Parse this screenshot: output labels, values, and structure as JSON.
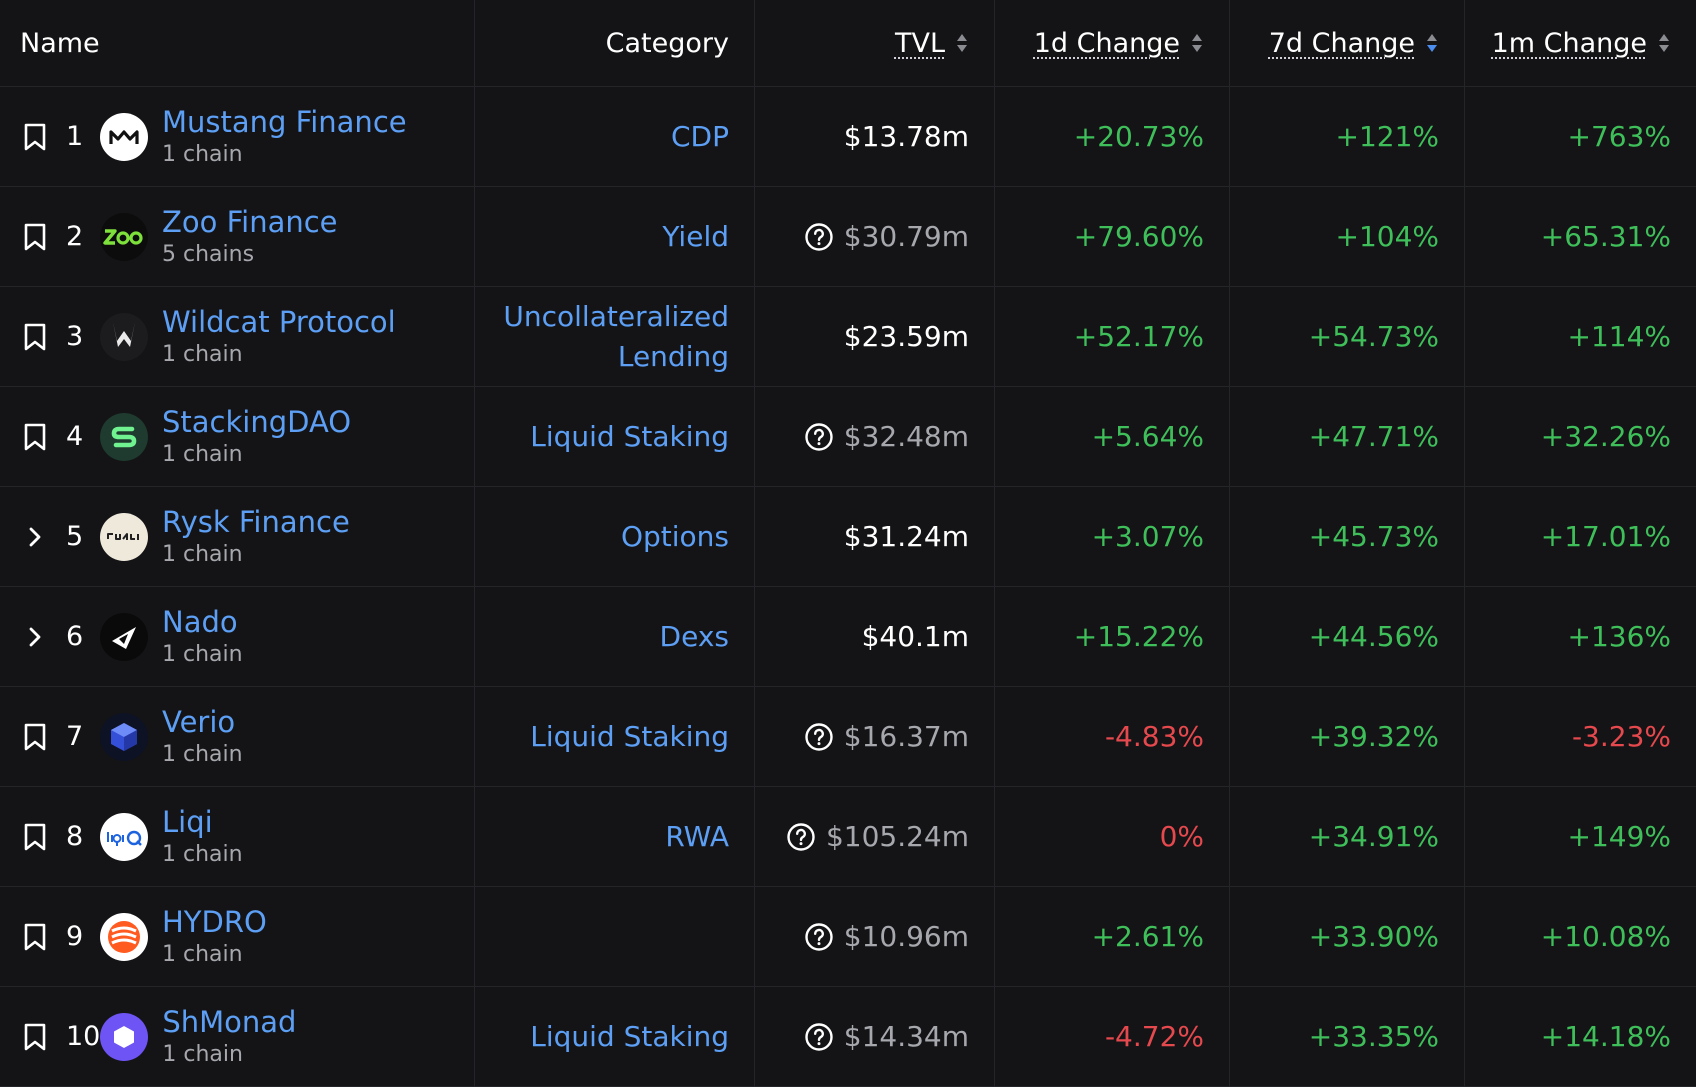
{
  "headers": {
    "name": "Name",
    "category": "Category",
    "tvl": "TVL",
    "change_1d": "1d Change",
    "change_7d": "7d Change",
    "change_1m": "1m Change",
    "active_sort": "7d Change",
    "sort_direction": "descending"
  },
  "colors": {
    "background": "#141416",
    "link": "#5c9ff4",
    "positive": "#3fbf5a",
    "negative": "#e5484d",
    "muted": "#a6a8ad",
    "sort_active": "#4c8df0"
  },
  "rows": [
    {
      "lead": "bookmark-icon",
      "rank": "1",
      "name": "Mustang Finance",
      "chains": "1 chain",
      "category": "CDP",
      "tvl": "$13.78m",
      "tvl_unverified": false,
      "d1": "+20.73%",
      "d7": "+121%",
      "m1": "+763%",
      "logo": "mustang-logo"
    },
    {
      "lead": "bookmark-icon",
      "rank": "2",
      "name": "Zoo Finance",
      "chains": "5 chains",
      "category": "Yield",
      "tvl": "$30.79m",
      "tvl_unverified": true,
      "d1": "+79.60%",
      "d7": "+104%",
      "m1": "+65.31%",
      "logo": "zoo-logo"
    },
    {
      "lead": "bookmark-icon",
      "rank": "3",
      "name": "Wildcat Protocol",
      "chains": "1 chain",
      "category": "Uncollateralized Lending",
      "tvl": "$23.59m",
      "tvl_unverified": false,
      "d1": "+52.17%",
      "d7": "+54.73%",
      "m1": "+114%",
      "logo": "wildcat-logo"
    },
    {
      "lead": "bookmark-icon",
      "rank": "4",
      "name": "StackingDAO",
      "chains": "1 chain",
      "category": "Liquid Staking",
      "tvl": "$32.48m",
      "tvl_unverified": true,
      "d1": "+5.64%",
      "d7": "+47.71%",
      "m1": "+32.26%",
      "logo": "stackingdao-logo"
    },
    {
      "lead": "chevron-right-icon",
      "rank": "5",
      "name": "Rysk Finance",
      "chains": "1 chain",
      "category": "Options",
      "tvl": "$31.24m",
      "tvl_unverified": false,
      "d1": "+3.07%",
      "d7": "+45.73%",
      "m1": "+17.01%",
      "logo": "rysk-logo"
    },
    {
      "lead": "chevron-right-icon",
      "rank": "6",
      "name": "Nado",
      "chains": "1 chain",
      "category": "Dexs",
      "tvl": "$40.1m",
      "tvl_unverified": false,
      "d1": "+15.22%",
      "d7": "+44.56%",
      "m1": "+136%",
      "logo": "nado-logo"
    },
    {
      "lead": "bookmark-icon",
      "rank": "7",
      "name": "Verio",
      "chains": "1 chain",
      "category": "Liquid Staking",
      "tvl": "$16.37m",
      "tvl_unverified": true,
      "d1": "-4.83%",
      "d7": "+39.32%",
      "m1": "-3.23%",
      "logo": "verio-logo"
    },
    {
      "lead": "bookmark-icon",
      "rank": "8",
      "name": "Liqi",
      "chains": "1 chain",
      "category": "RWA",
      "tvl": "$105.24m",
      "tvl_unverified": true,
      "d1": "0%",
      "d7": "+34.91%",
      "m1": "+149%",
      "logo": "liqi-logo"
    },
    {
      "lead": "bookmark-icon",
      "rank": "9",
      "name": "HYDRO",
      "chains": "1 chain",
      "category": "",
      "tvl": "$10.96m",
      "tvl_unverified": true,
      "d1": "+2.61%",
      "d7": "+33.90%",
      "m1": "+10.08%",
      "logo": "hydro-logo"
    },
    {
      "lead": "bookmark-icon",
      "rank": "10",
      "name": "ShMonad",
      "chains": "1 chain",
      "category": "Liquid Staking",
      "tvl": "$14.34m",
      "tvl_unverified": true,
      "d1": "-4.72%",
      "d7": "+33.35%",
      "m1": "+14.18%",
      "logo": "shmonad-logo"
    }
  ]
}
